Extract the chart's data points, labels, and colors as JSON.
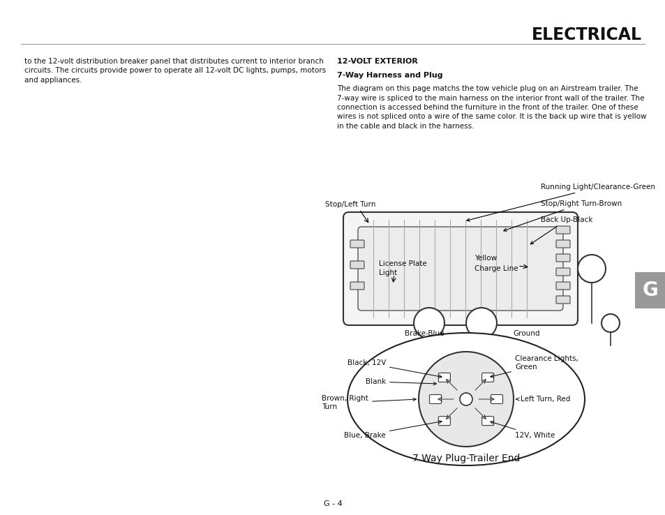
{
  "title": "ELECTRICAL",
  "page_num": "G - 4",
  "section_tab": "G",
  "left_text_lines": [
    "to the 12-volt distribution breaker panel that distributes current to interior branch",
    "circuits. The circuits provide power to operate all 12-volt DC lights, pumps, motors",
    "and appliances."
  ],
  "right_header1": "12-VOLT EXTERIOR",
  "right_header2": "7-Way Harness and Plug",
  "right_body_lines": [
    "The diagram on this page matchs the tow vehicle plug on an Airstream trailer. The",
    "7-way wire is spliced to the main harness on the interior front wall of the trailer. The",
    "connection is accessed behind the furniture in the front of the trailer. One of these",
    "wires is not spliced onto a wire of the same color. It is the back up wire that is yellow",
    "in the cable and black in the harness."
  ],
  "label_run_clear": "Running Light/Clearance-Green",
  "label_stop_right": "Stop/Right Turn-Brown",
  "label_backup": "Back Up-Black",
  "label_stop_left": "Stop/Left Turn",
  "label_lic1": "License Plate",
  "label_lic2": "Light",
  "label_yellow": "Yellow",
  "label_charge": "Charge Line",
  "label_brake": "Brake-Blue",
  "label_ground": "Ground",
  "plug_black12v": "Black, 12V",
  "plug_clearance": "Clearance Lights,\nGreen",
  "plug_blank": "Blank",
  "plug_brown": "Brown, Right\nTurn",
  "plug_left_turn": "Left Turn, Red",
  "plug_blue_brake": "Blue, Brake",
  "plug_12v_white": "12V, White",
  "plug_title": "7 Way Plug-Trailer End",
  "bg_color": "#ffffff",
  "text_color": "#111111",
  "tab_color": "#999999",
  "tab_text": "#ffffff"
}
